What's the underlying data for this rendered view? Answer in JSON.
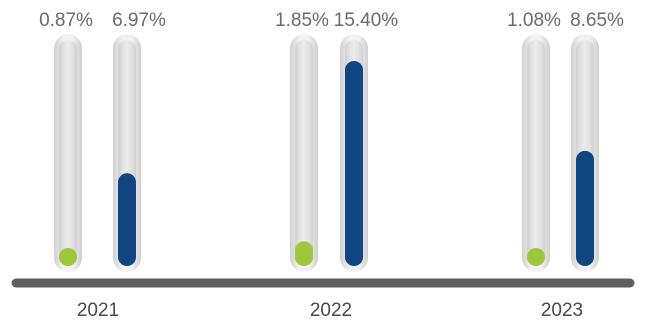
{
  "chart_data": {
    "type": "bar",
    "categories": [
      "2021",
      "2022",
      "2023"
    ],
    "series": [
      {
        "values": [
          0.87,
          1.85,
          1.08
        ],
        "labels": [
          "0.87%",
          "1.85%",
          "1.08%"
        ],
        "color": "#9dc83c"
      },
      {
        "values": [
          6.97,
          15.4,
          8.65
        ],
        "labels": [
          "6.97%",
          "15.40%",
          "8.65%"
        ],
        "color": "#0e4582"
      }
    ],
    "ylim": [
      0,
      16
    ],
    "grid": false,
    "legend": "none",
    "colors": {
      "baseline": "#5f5f5f",
      "tube": "#d9d9d9",
      "tube_highlight": "#f4f4f4"
    }
  }
}
